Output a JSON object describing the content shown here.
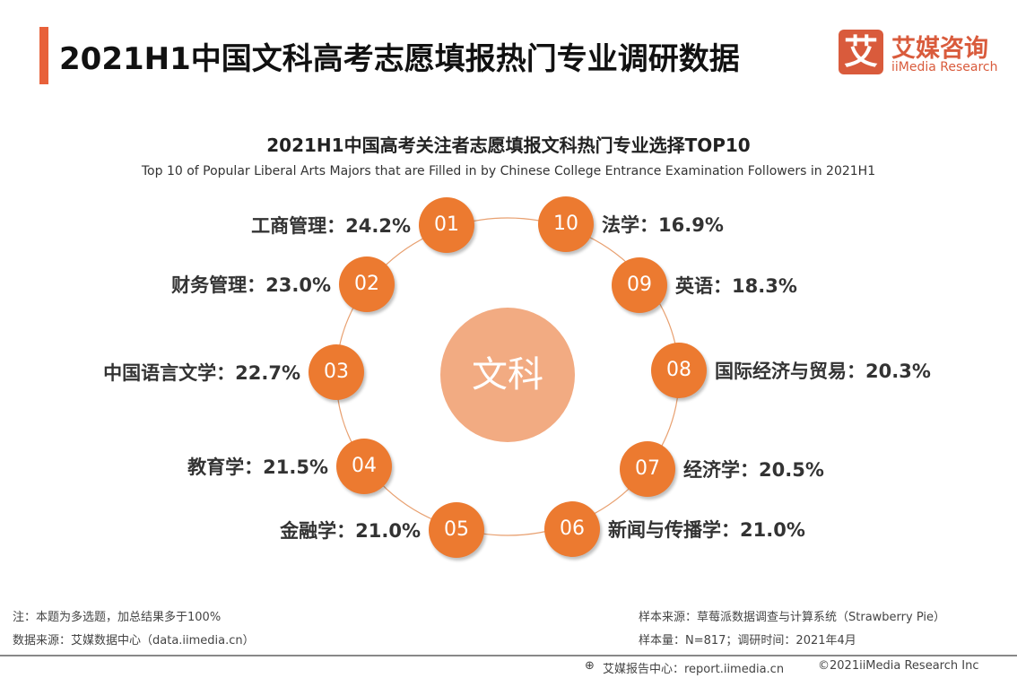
{
  "header": {
    "title": "2021H1中国文科高考志愿填报热门专业调研数据",
    "logo_mark": "艾",
    "logo_cn": "艾媒咨询",
    "logo_en": "iiMedia Research"
  },
  "chart_data": {
    "type": "diagram",
    "title": "2021H1中国高考关注者志愿填报文科热门专业选择TOP10",
    "subtitle": "Top 10 of Popular Liberal Arts Majors that are Filled in by Chinese College Entrance Examination Followers in 2021H1",
    "center": "文科",
    "items": [
      {
        "rank": "01",
        "name": "工商管理",
        "value": "24.2%"
      },
      {
        "rank": "02",
        "name": "财务管理",
        "value": "23.0%"
      },
      {
        "rank": "03",
        "name": "中国语言文学",
        "value": "22.7%"
      },
      {
        "rank": "04",
        "name": "教育学",
        "value": "21.5%"
      },
      {
        "rank": "05",
        "name": "金融学",
        "value": "21.0%"
      },
      {
        "rank": "06",
        "name": "新闻与传播学",
        "value": "21.0%"
      },
      {
        "rank": "07",
        "name": "经济学",
        "value": "20.5%"
      },
      {
        "rank": "08",
        "name": "国际经济与贸易",
        "value": "20.3%"
      },
      {
        "rank": "09",
        "name": "英语",
        "value": "18.3%"
      },
      {
        "rank": "10",
        "name": "法学",
        "value": "16.9%"
      }
    ],
    "colors": {
      "node": "#ec7a30",
      "center": "#f2ab82",
      "ring": "#e8a070"
    }
  },
  "footer": {
    "note": "注：本题为多选题，加总结果多于100%",
    "source": "数据来源：艾媒数据中心（data.iimedia.cn）",
    "sample_source": "样本来源：草莓派数据调查与计算系统（Strawberry Pie）",
    "sample_size": "样本量：N=817；调研时间：2021年4月",
    "report": "艾媒报告中心：report.iimedia.cn",
    "copyright": "©2021iiMedia Research  Inc"
  }
}
